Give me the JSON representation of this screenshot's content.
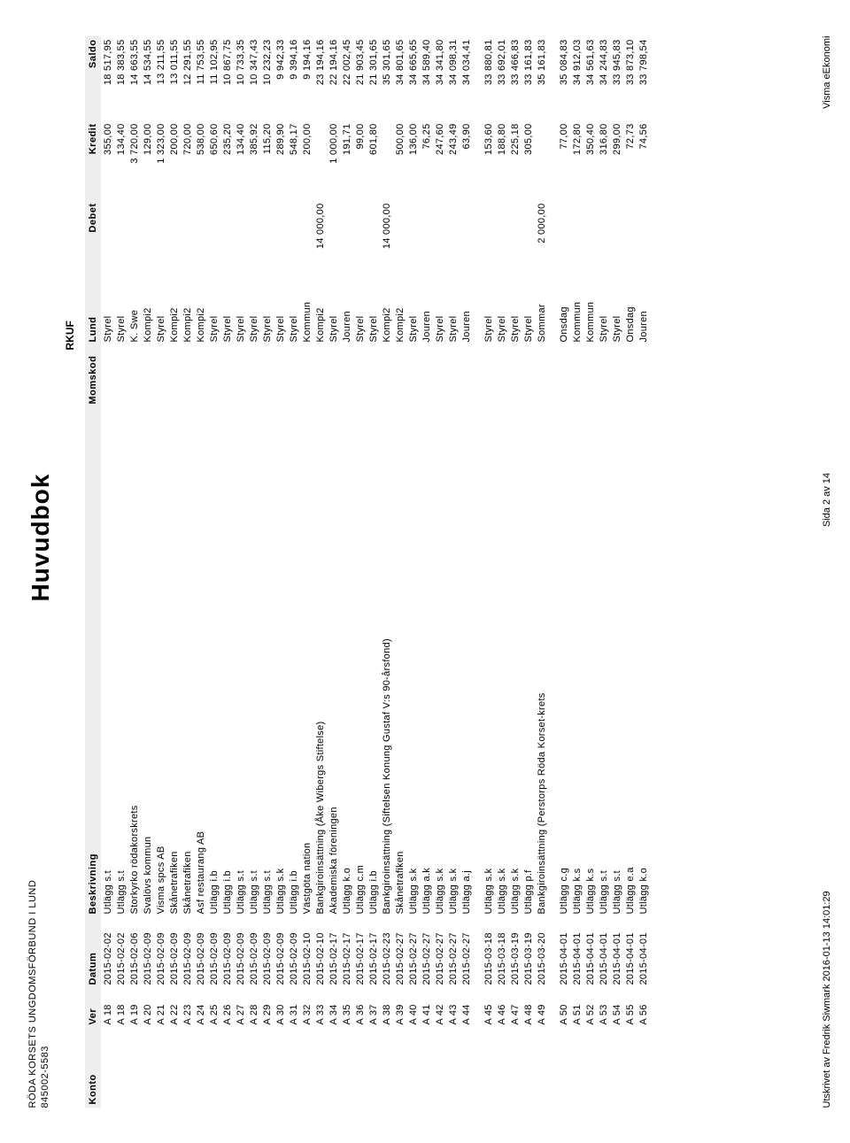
{
  "org": {
    "name": "RÖDA KORSETS UNGDOMSFÖRBUND I LUND",
    "number": "845002-5583"
  },
  "title": "Huvudbok",
  "subhead": "RKUF",
  "columns": [
    "Konto",
    "Ver",
    "Datum",
    "Beskrivning",
    "Momskod",
    "Lund",
    "Debet",
    "Kredit",
    "Saldo"
  ],
  "rows": [
    {
      "ver": "A 18",
      "datum": "2015-02-02",
      "besk": "Utlägg s.t",
      "lund": "Styrel",
      "debet": "",
      "kredit": "355,00",
      "saldo": "18 517,95"
    },
    {
      "ver": "A 18",
      "datum": "2015-02-02",
      "besk": "Utlägg s.t",
      "lund": "Styrel",
      "debet": "",
      "kredit": "134,40",
      "saldo": "18 383,55"
    },
    {
      "ver": "A 19",
      "datum": "2015-02-06",
      "besk": "Storkyrko rödakorskrets",
      "lund": "K. Swe",
      "debet": "",
      "kredit": "3 720,00",
      "saldo": "14 663,55"
    },
    {
      "ver": "A 20",
      "datum": "2015-02-09",
      "besk": "Svalövs kommun",
      "lund": "Kompi2",
      "debet": "",
      "kredit": "129,00",
      "saldo": "14 534,55"
    },
    {
      "ver": "A 21",
      "datum": "2015-02-09",
      "besk": "Visma spcs AB",
      "lund": "Styrel",
      "debet": "",
      "kredit": "1 323,00",
      "saldo": "13 211,55"
    },
    {
      "ver": "A 22",
      "datum": "2015-02-09",
      "besk": "Skånetrafiken",
      "lund": "Kompi2",
      "debet": "",
      "kredit": "200,00",
      "saldo": "13 011,55"
    },
    {
      "ver": "A 23",
      "datum": "2015-02-09",
      "besk": "Skånetrafiken",
      "lund": "Kompi2",
      "debet": "",
      "kredit": "720,00",
      "saldo": "12 291,55"
    },
    {
      "ver": "A 24",
      "datum": "2015-02-09",
      "besk": "Asf restaurang AB",
      "lund": "Kompi2",
      "debet": "",
      "kredit": "538,00",
      "saldo": "11 753,55"
    },
    {
      "ver": "A 25",
      "datum": "2015-02-09",
      "besk": "Utlägg i.b",
      "lund": "Styrel",
      "debet": "",
      "kredit": "650,60",
      "saldo": "11 102,95"
    },
    {
      "ver": "A 26",
      "datum": "2015-02-09",
      "besk": "Utlägg i.b",
      "lund": "Styrel",
      "debet": "",
      "kredit": "235,20",
      "saldo": "10 867,75"
    },
    {
      "ver": "A 27",
      "datum": "2015-02-09",
      "besk": "Utlägg s.t",
      "lund": "Styrel",
      "debet": "",
      "kredit": "134,40",
      "saldo": "10 733,35"
    },
    {
      "ver": "A 28",
      "datum": "2015-02-09",
      "besk": "Utlägg s.t",
      "lund": "Styrel",
      "debet": "",
      "kredit": "385,92",
      "saldo": "10 347,43"
    },
    {
      "ver": "A 29",
      "datum": "2015-02-09",
      "besk": "Utlägg s.t",
      "lund": "Styrel",
      "debet": "",
      "kredit": "115,20",
      "saldo": "10 232,23"
    },
    {
      "ver": "A 30",
      "datum": "2015-02-09",
      "besk": "Utlägg s.k",
      "lund": "Styrel",
      "debet": "",
      "kredit": "289,90",
      "saldo": "9 942,33"
    },
    {
      "ver": "A 31",
      "datum": "2015-02-09",
      "besk": "Utlägg i.b",
      "lund": "Styrel",
      "debet": "",
      "kredit": "548,17",
      "saldo": "9 394,16"
    },
    {
      "ver": "A 32",
      "datum": "2015-02-10",
      "besk": "Västgöta nation",
      "lund": "Kommun",
      "debet": "",
      "kredit": "200,00",
      "saldo": "9 194,16"
    },
    {
      "ver": "A 33",
      "datum": "2015-02-10",
      "besk": "Bankgiroinsättning (Åke Wibergs Stiftelse)",
      "lund": "Kompi2",
      "debet": "14 000,00",
      "kredit": "",
      "saldo": "23 194,16"
    },
    {
      "ver": "A 34",
      "datum": "2015-02-17",
      "besk": "Akademiska föreningen",
      "lund": "Styrel",
      "debet": "",
      "kredit": "1 000,00",
      "saldo": "22 194,16"
    },
    {
      "ver": "A 35",
      "datum": "2015-02-17",
      "besk": "Utlägg k.o",
      "lund": "Jouren",
      "debet": "",
      "kredit": "191,71",
      "saldo": "22 002,45"
    },
    {
      "ver": "A 36",
      "datum": "2015-02-17",
      "besk": "Utlägg c.m",
      "lund": "Styrel",
      "debet": "",
      "kredit": "99,00",
      "saldo": "21 903,45"
    },
    {
      "ver": "A 37",
      "datum": "2015-02-17",
      "besk": "Utlägg i.b",
      "lund": "Styrel",
      "debet": "",
      "kredit": "601,80",
      "saldo": "21 301,65"
    },
    {
      "ver": "A 38",
      "datum": "2015-02-23",
      "besk": "Bankgiroinsättning (Siftelsen Konung Gustaf V:s 90-årsfond)",
      "lund": "Kompi2",
      "debet": "14 000,00",
      "kredit": "",
      "saldo": "35 301,65"
    },
    {
      "ver": "A 39",
      "datum": "2015-02-27",
      "besk": "Skånetrafiken",
      "lund": "Kompi2",
      "debet": "",
      "kredit": "500,00",
      "saldo": "34 801,65"
    },
    {
      "ver": "A 40",
      "datum": "2015-02-27",
      "besk": "Utlägg s.k",
      "lund": "Styrel",
      "debet": "",
      "kredit": "136,00",
      "saldo": "34 665,65"
    },
    {
      "ver": "A 41",
      "datum": "2015-02-27",
      "besk": "Utlägg a.k",
      "lund": "Jouren",
      "debet": "",
      "kredit": "76,25",
      "saldo": "34 589,40"
    },
    {
      "ver": "A 42",
      "datum": "2015-02-27",
      "besk": "Utlägg s.k",
      "lund": "Styrel",
      "debet": "",
      "kredit": "247,60",
      "saldo": "34 341,80"
    },
    {
      "ver": "A 43",
      "datum": "2015-02-27",
      "besk": "Utlägg s.k",
      "lund": "Styrel",
      "debet": "",
      "kredit": "243,49",
      "saldo": "34 098,31"
    },
    {
      "ver": "A 44",
      "datum": "2015-02-27",
      "besk": "Utlägg a.j",
      "lund": "Jouren",
      "debet": "",
      "kredit": "63,90",
      "saldo": "34 034,41"
    },
    {
      "gap": true
    },
    {
      "ver": "A 45",
      "datum": "2015-03-18",
      "besk": "Utlägg s.k",
      "lund": "Styrel",
      "debet": "",
      "kredit": "153,60",
      "saldo": "33 880,81"
    },
    {
      "ver": "A 46",
      "datum": "2015-03-18",
      "besk": "Utlägg s.k",
      "lund": "Styrel",
      "debet": "",
      "kredit": "188,80",
      "saldo": "33 692,01"
    },
    {
      "ver": "A 47",
      "datum": "2015-03-19",
      "besk": "Utlägg s.k",
      "lund": "Styrel",
      "debet": "",
      "kredit": "225,18",
      "saldo": "33 466,83"
    },
    {
      "ver": "A 48",
      "datum": "2015-03-19",
      "besk": "Utlägg p.f",
      "lund": "Styrel",
      "debet": "",
      "kredit": "305,00",
      "saldo": "33 161,83"
    },
    {
      "ver": "A 49",
      "datum": "2015-03-20",
      "besk": "Bankgiroinsättning (Perstorps Röda Korset-krets",
      "lund": "Sommar",
      "debet": "2 000,00",
      "kredit": "",
      "saldo": "35 161,83"
    },
    {
      "gap": true
    },
    {
      "ver": "A 50",
      "datum": "2015-04-01",
      "besk": "Utlägg c.g",
      "lund": "Onsdag",
      "debet": "",
      "kredit": "77,00",
      "saldo": "35 084,83"
    },
    {
      "ver": "A 51",
      "datum": "2015-04-01",
      "besk": "Utlägg k.s",
      "lund": "Kommun",
      "debet": "",
      "kredit": "172,80",
      "saldo": "34 912,03"
    },
    {
      "ver": "A 52",
      "datum": "2015-04-01",
      "besk": "Utlägg k.s",
      "lund": "Kommun",
      "debet": "",
      "kredit": "350,40",
      "saldo": "34 561,63"
    },
    {
      "ver": "A 53",
      "datum": "2015-04-01",
      "besk": "Utlägg s.t",
      "lund": "Styrel",
      "debet": "",
      "kredit": "316,80",
      "saldo": "34 244,83"
    },
    {
      "ver": "A 54",
      "datum": "2015-04-01",
      "besk": "Utlägg s.t",
      "lund": "Styrel",
      "debet": "",
      "kredit": "299,00",
      "saldo": "33 945,83"
    },
    {
      "ver": "A 55",
      "datum": "2015-04-01",
      "besk": "Utlägg e.a",
      "lund": "Onsdag",
      "debet": "",
      "kredit": "72,73",
      "saldo": "33 873,10"
    },
    {
      "ver": "A 56",
      "datum": "2015-04-01",
      "besk": "Utlägg k.o",
      "lund": "Jouren",
      "debet": "",
      "kredit": "74,56",
      "saldo": "33 798,54"
    }
  ],
  "footer": {
    "left": "Utskrivet av Fredrik Siwmark 2016-01-13 14:01:29",
    "center": "Sida 2 av 14",
    "right": "Visma eEkonomi"
  }
}
